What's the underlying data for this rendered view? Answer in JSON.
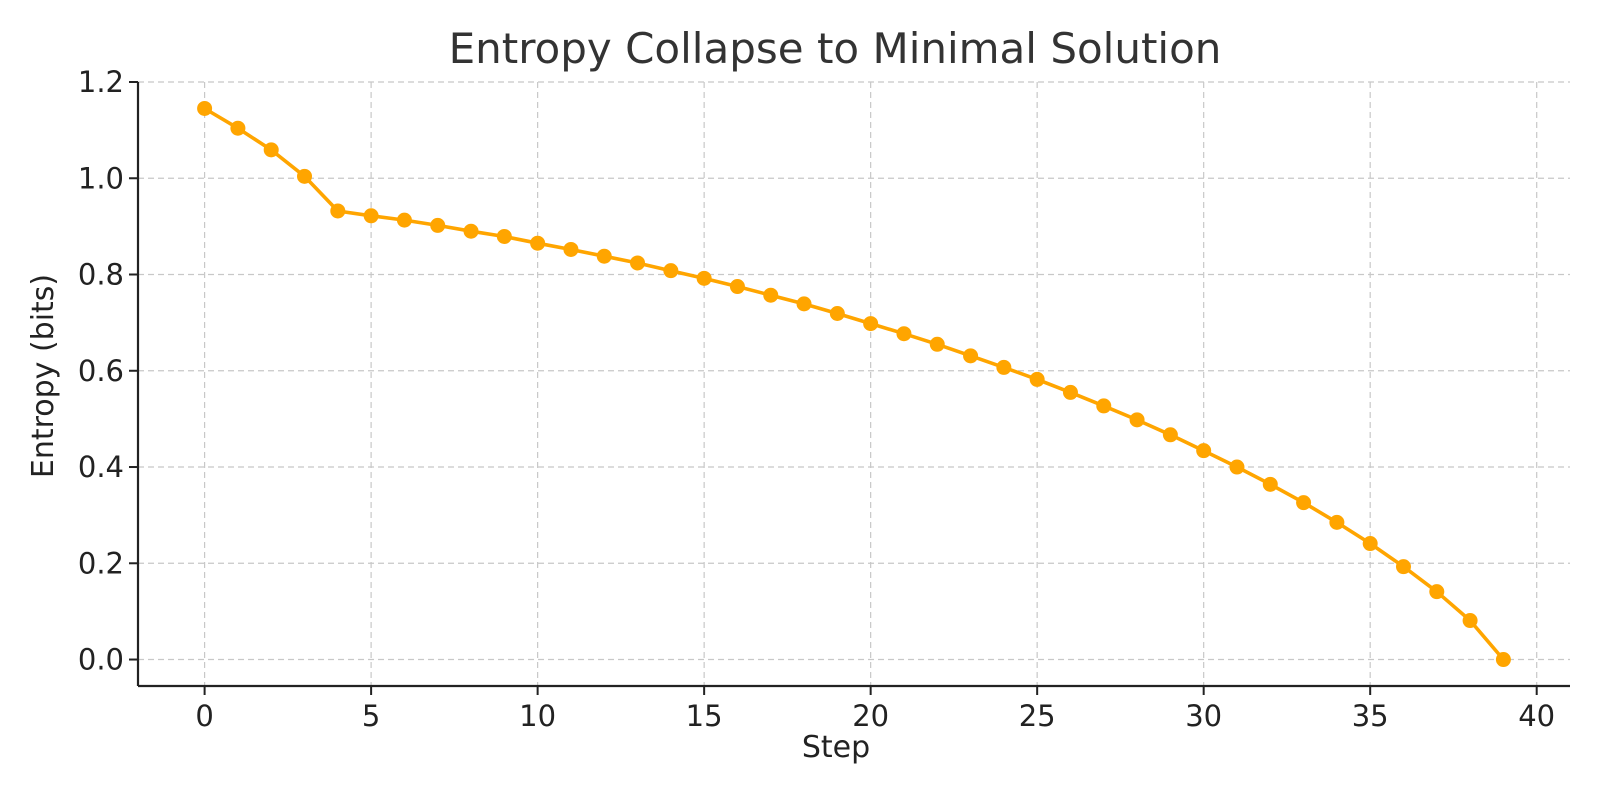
{
  "chart_data": {
    "type": "line",
    "title": "Entropy Collapse to Minimal Solution",
    "xlabel": "Step",
    "ylabel": "Entropy (bits)",
    "xlim": [
      -2,
      41
    ],
    "ylim": [
      -0.055,
      1.2
    ],
    "x_ticks": [
      0,
      5,
      10,
      15,
      20,
      25,
      30,
      35,
      40
    ],
    "x_tick_labels": [
      "0",
      "5",
      "10",
      "15",
      "20",
      "25",
      "30",
      "35",
      "40"
    ],
    "y_ticks": [
      0.0,
      0.2,
      0.4,
      0.6,
      0.8,
      1.0,
      1.2
    ],
    "y_tick_labels": [
      "0.0",
      "0.2",
      "0.4",
      "0.6",
      "0.8",
      "1.0",
      "1.2"
    ],
    "grid": true,
    "series": [
      {
        "color": "#FFA500",
        "marker": "circle",
        "x": [
          0,
          1,
          2,
          3,
          4,
          5,
          6,
          7,
          8,
          9,
          10,
          11,
          12,
          13,
          14,
          15,
          16,
          17,
          18,
          19,
          20,
          21,
          22,
          23,
          24,
          25,
          26,
          27,
          28,
          29,
          30,
          31,
          32,
          33,
          34,
          35,
          36,
          37,
          38,
          39
        ],
        "values": [
          1.145,
          1.104,
          1.059,
          1.004,
          0.932,
          0.922,
          0.913,
          0.902,
          0.89,
          0.879,
          0.865,
          0.852,
          0.838,
          0.824,
          0.808,
          0.792,
          0.775,
          0.757,
          0.739,
          0.719,
          0.698,
          0.677,
          0.655,
          0.631,
          0.607,
          0.582,
          0.555,
          0.527,
          0.498,
          0.467,
          0.434,
          0.4,
          0.364,
          0.326,
          0.285,
          0.241,
          0.193,
          0.141,
          0.081,
          0.0
        ]
      }
    ]
  }
}
